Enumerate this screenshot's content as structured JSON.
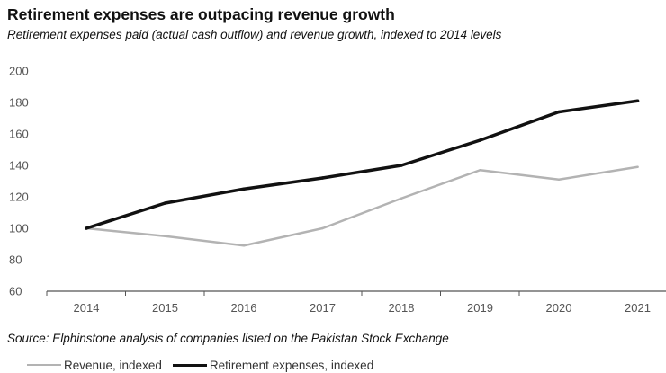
{
  "colors": {
    "revenue": "#b3b3b3",
    "retirement": "#111111",
    "axis": "#555555",
    "text": "#111111"
  },
  "chart_data": {
    "type": "line",
    "title": "Retirement expenses are outpacing revenue growth",
    "subtitle": "Retirement expenses paid (actual cash outflow) and revenue growth, indexed to 2014 levels",
    "xlabel": "",
    "ylabel": "",
    "x": [
      "2014",
      "2015",
      "2016",
      "2017",
      "2018",
      "2019",
      "2020",
      "2021"
    ],
    "ylim": [
      60,
      200
    ],
    "yticks": [
      60,
      80,
      100,
      120,
      140,
      160,
      180,
      200
    ],
    "grid": false,
    "legend_position": "bottom-left",
    "series": [
      {
        "name": "Revenue, indexed",
        "values": [
          100,
          95,
          89,
          100,
          119,
          137,
          131,
          139
        ]
      },
      {
        "name": "Retirement expenses, indexed",
        "values": [
          100,
          116,
          125,
          132,
          140,
          156,
          174,
          181
        ]
      }
    ],
    "source": "Source: Elphinstone analysis of companies listed on the Pakistan Stock Exchange"
  }
}
